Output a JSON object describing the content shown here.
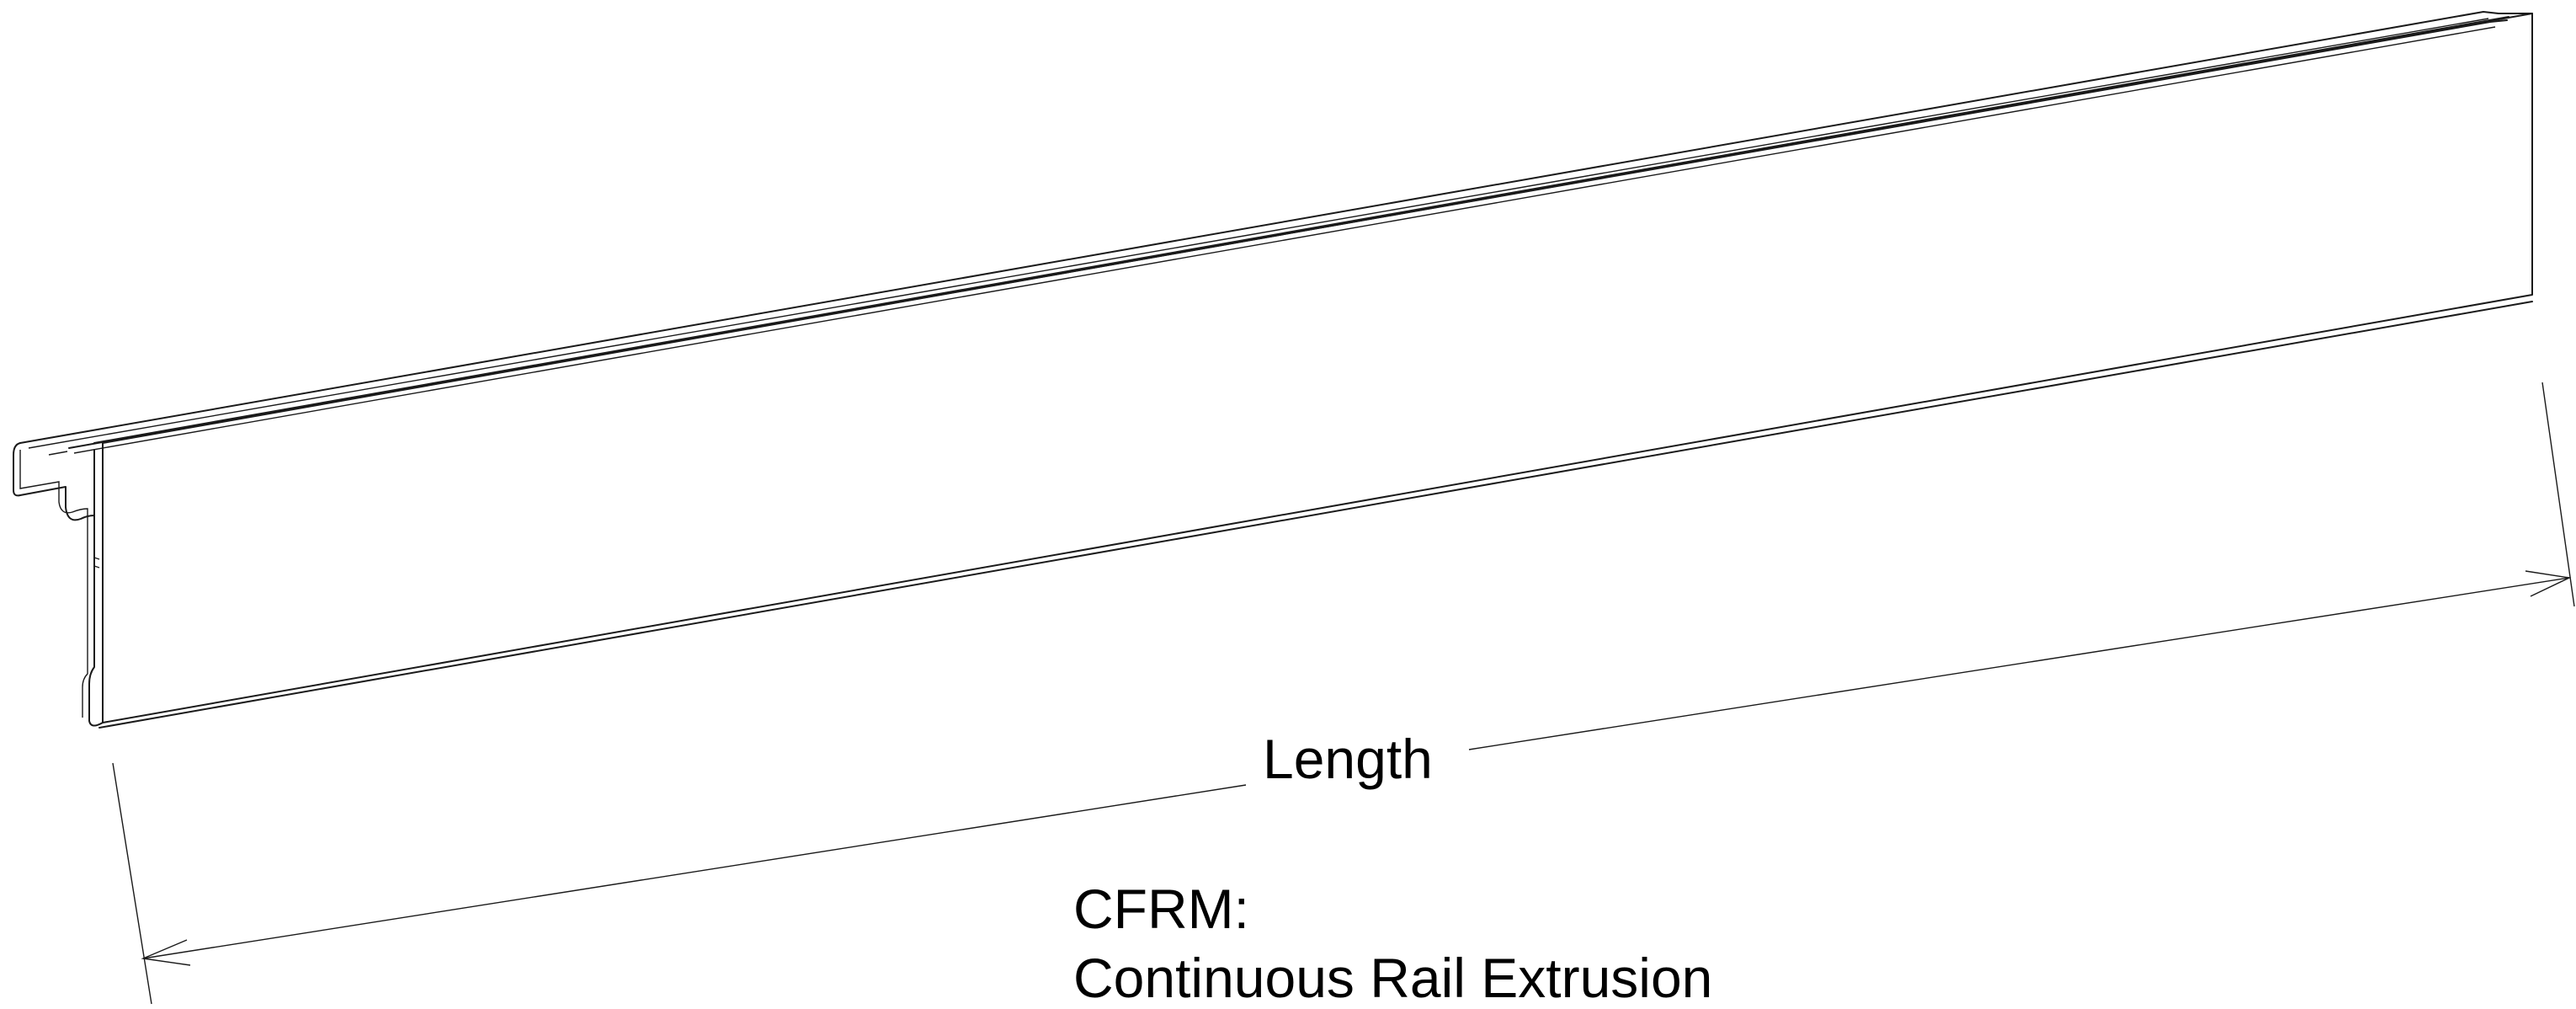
{
  "dimension": {
    "label": "Length"
  },
  "part": {
    "code": "CFRM:",
    "name": "Continuous Rail Extrusion"
  }
}
